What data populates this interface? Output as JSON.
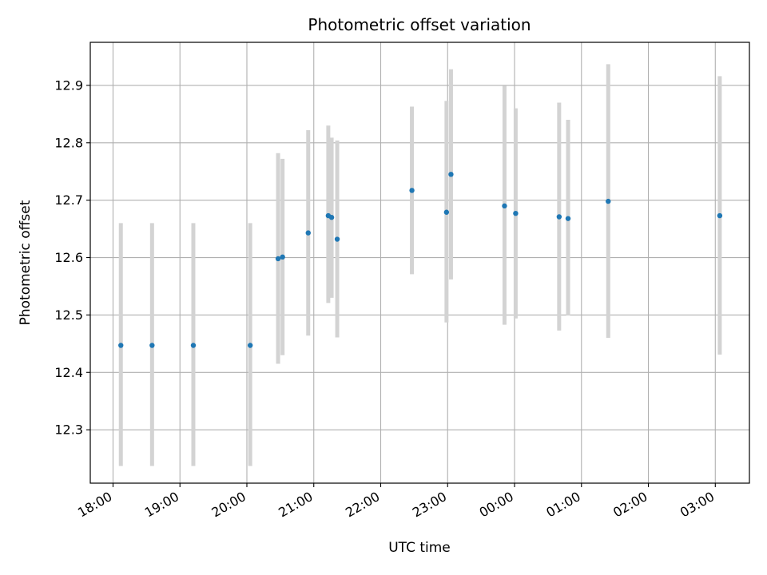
{
  "chart_data": {
    "type": "scatter",
    "title": "Photometric offset variation",
    "xlabel": "UTC time",
    "ylabel": "Photometric offset",
    "x_axis": {
      "kind": "time",
      "ticks": [
        "18:00",
        "19:00",
        "20:00",
        "21:00",
        "22:00",
        "23:00",
        "00:00",
        "01:00",
        "02:00",
        "03:00"
      ],
      "tick_hours": [
        18,
        19,
        20,
        21,
        22,
        23,
        24,
        25,
        26,
        27
      ],
      "xlim_hours": [
        17.66,
        27.51
      ]
    },
    "y_axis": {
      "ticks": [
        "12.3",
        "12.4",
        "12.5",
        "12.6",
        "12.7",
        "12.8",
        "12.9"
      ],
      "tick_values": [
        12.3,
        12.4,
        12.5,
        12.6,
        12.7,
        12.8,
        12.9
      ],
      "ylim": [
        12.207,
        12.975
      ]
    },
    "grid": true,
    "colors": {
      "marker": "#1f77b4",
      "errorbar": "#d3d3d3",
      "grid": "#b0b0b0"
    },
    "points": [
      {
        "t": "18:07",
        "y": 12.447,
        "ylo": 12.237,
        "yhi": 12.66
      },
      {
        "t": "18:35",
        "y": 12.447,
        "ylo": 12.237,
        "yhi": 12.66
      },
      {
        "t": "19:12",
        "y": 12.447,
        "ylo": 12.237,
        "yhi": 12.66
      },
      {
        "t": "20:03",
        "y": 12.447,
        "ylo": 12.237,
        "yhi": 12.66
      },
      {
        "t": "20:28",
        "y": 12.598,
        "ylo": 12.415,
        "yhi": 12.782
      },
      {
        "t": "20:32",
        "y": 12.601,
        "ylo": 12.43,
        "yhi": 12.772
      },
      {
        "t": "20:55",
        "y": 12.643,
        "ylo": 12.464,
        "yhi": 12.822
      },
      {
        "t": "21:13",
        "y": 12.673,
        "ylo": 12.521,
        "yhi": 12.83
      },
      {
        "t": "21:16",
        "y": 12.67,
        "ylo": 12.53,
        "yhi": 12.809
      },
      {
        "t": "21:21",
        "y": 12.632,
        "ylo": 12.461,
        "yhi": 12.804
      },
      {
        "t": "22:28",
        "y": 12.717,
        "ylo": 12.571,
        "yhi": 12.863
      },
      {
        "t": "22:59",
        "y": 12.679,
        "ylo": 12.487,
        "yhi": 12.873
      },
      {
        "t": "23:03",
        "y": 12.745,
        "ylo": 12.562,
        "yhi": 12.928
      },
      {
        "t": "23:51",
        "y": 12.69,
        "ylo": 12.483,
        "yhi": 12.899
      },
      {
        "t": "00:01",
        "y": 12.677,
        "ylo": 12.494,
        "yhi": 12.86
      },
      {
        "t": "00:40",
        "y": 12.671,
        "ylo": 12.473,
        "yhi": 12.87
      },
      {
        "t": "00:48",
        "y": 12.668,
        "ylo": 12.499,
        "yhi": 12.84
      },
      {
        "t": "01:24",
        "y": 12.698,
        "ylo": 12.46,
        "yhi": 12.937
      },
      {
        "t": "03:04",
        "y": 12.673,
        "ylo": 12.431,
        "yhi": 12.916
      }
    ]
  }
}
